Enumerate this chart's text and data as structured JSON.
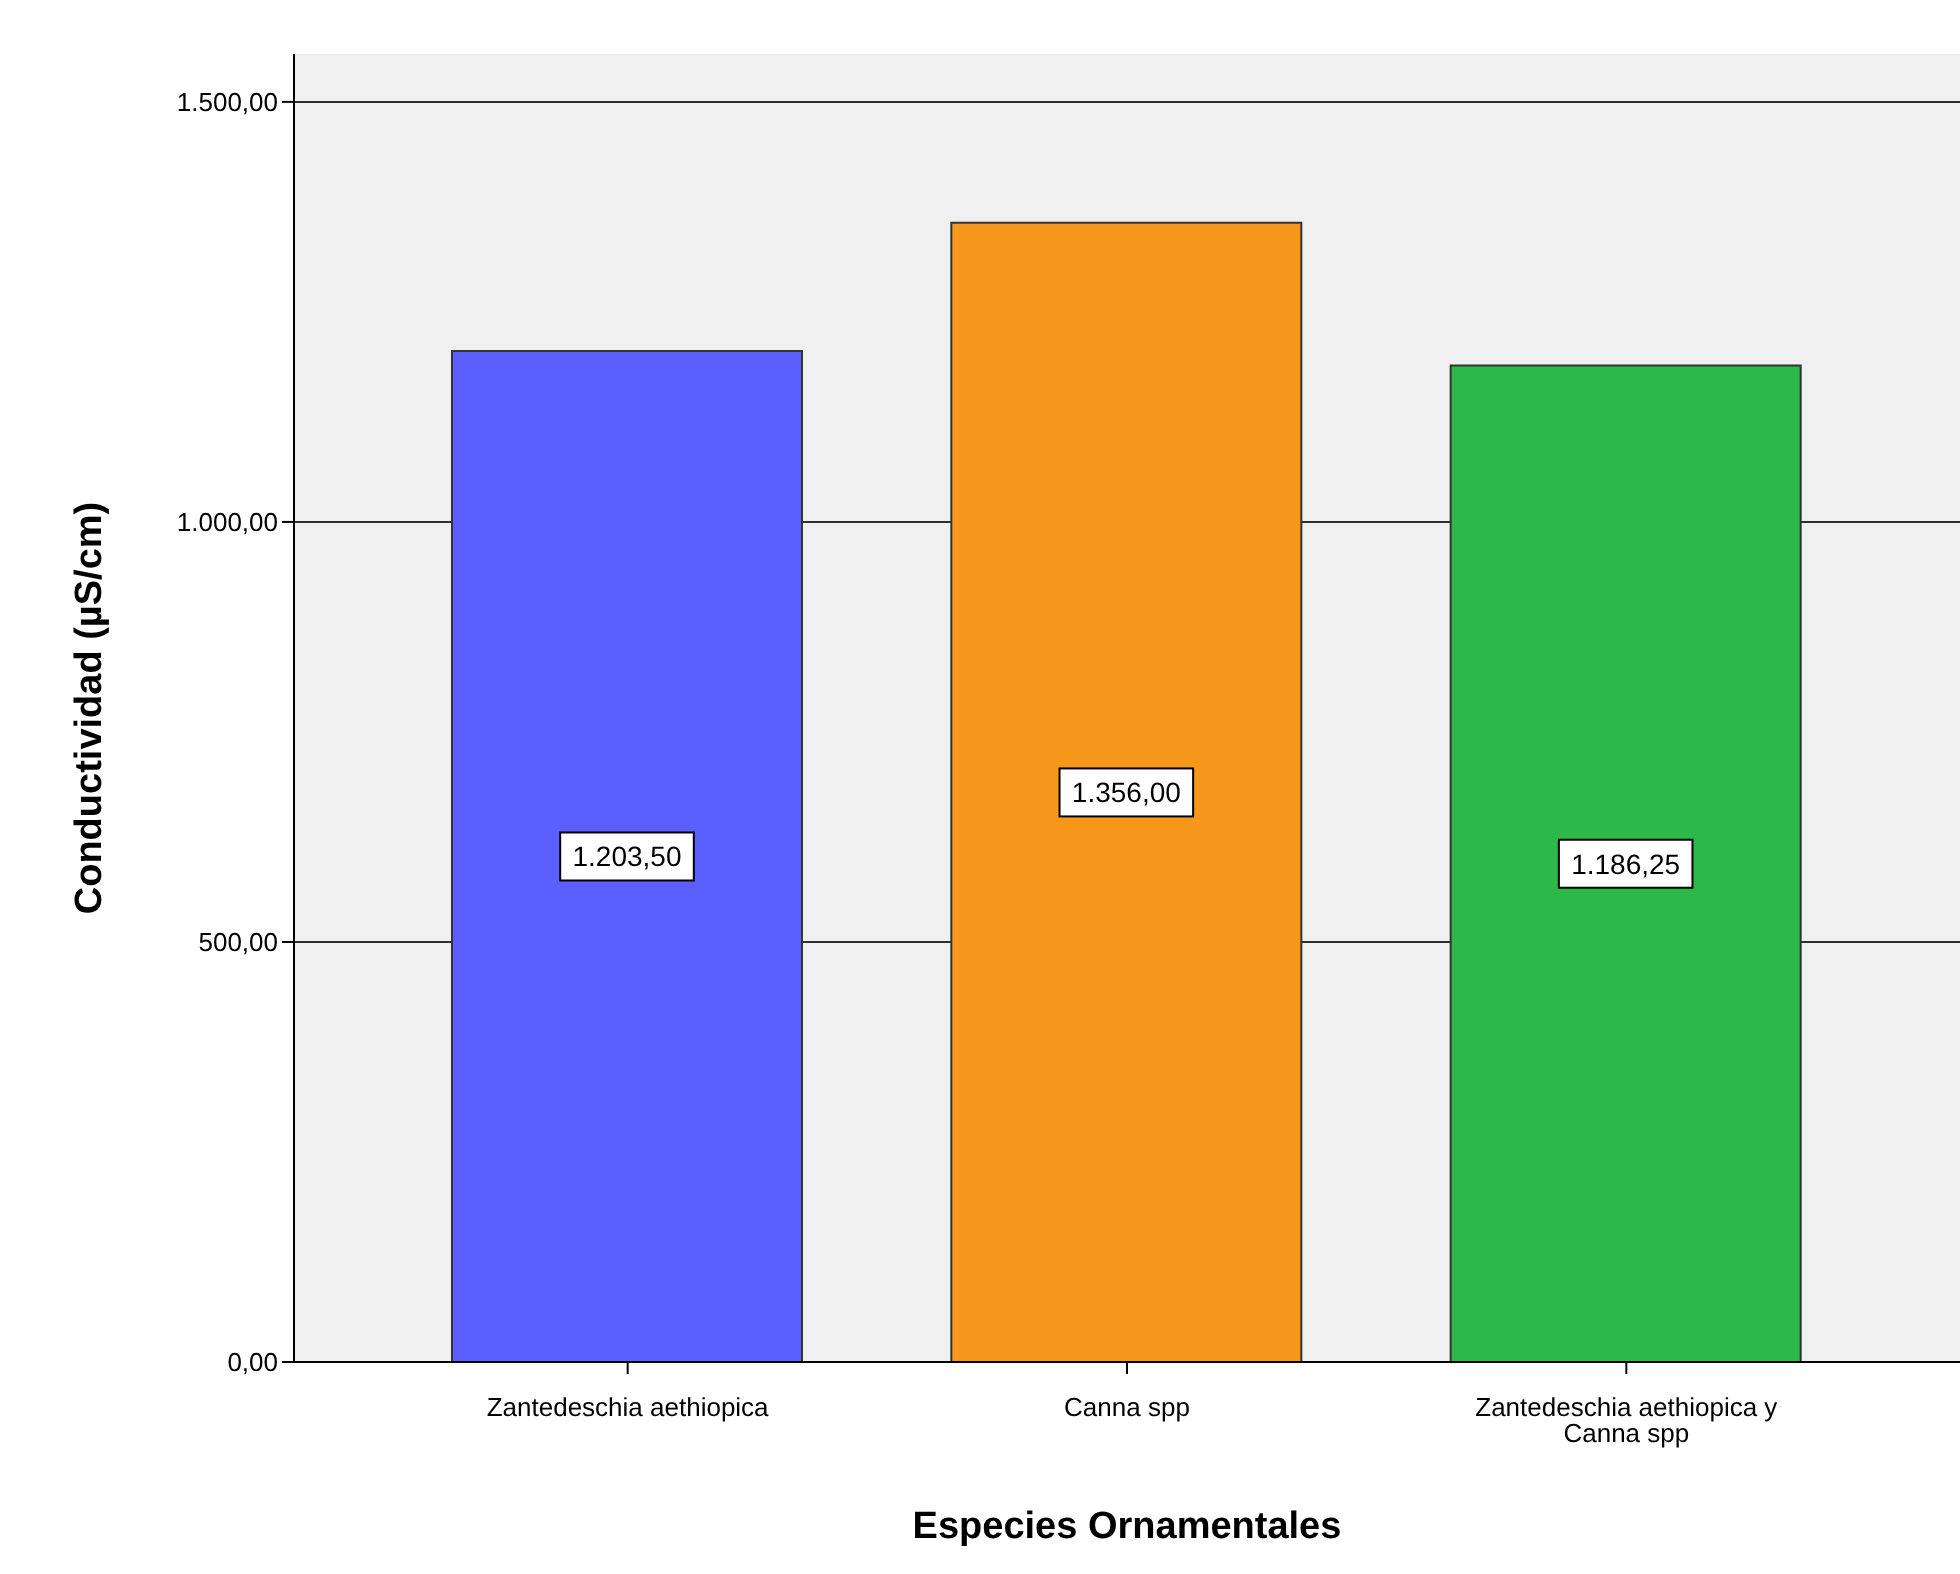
{
  "chart_data": {
    "type": "bar",
    "xlabel": "Especies Ornamentales",
    "ylabel": "Conductividad (µS/cm)",
    "categories": [
      "Zantedeschia aethiopica",
      "Canna spp",
      "Zantedeschia aethiopica y Canna spp"
    ],
    "values": [
      1203.5,
      1356,
      1186.25
    ],
    "colors": [
      "#5b5ffe",
      "#f7981d",
      "#2db84a"
    ],
    "value_labels": [
      "1.203,50",
      "1.356,00",
      "1.186,25"
    ],
    "ylim": [
      0,
      1557
    ],
    "yticks": [
      {
        "value": 0,
        "label": "0,00"
      },
      {
        "value": 500,
        "label": "500,00"
      },
      {
        "value": 1000,
        "label": "1.000,00"
      },
      {
        "value": 1500,
        "label": "1.500,00"
      }
    ],
    "grid": "y"
  }
}
